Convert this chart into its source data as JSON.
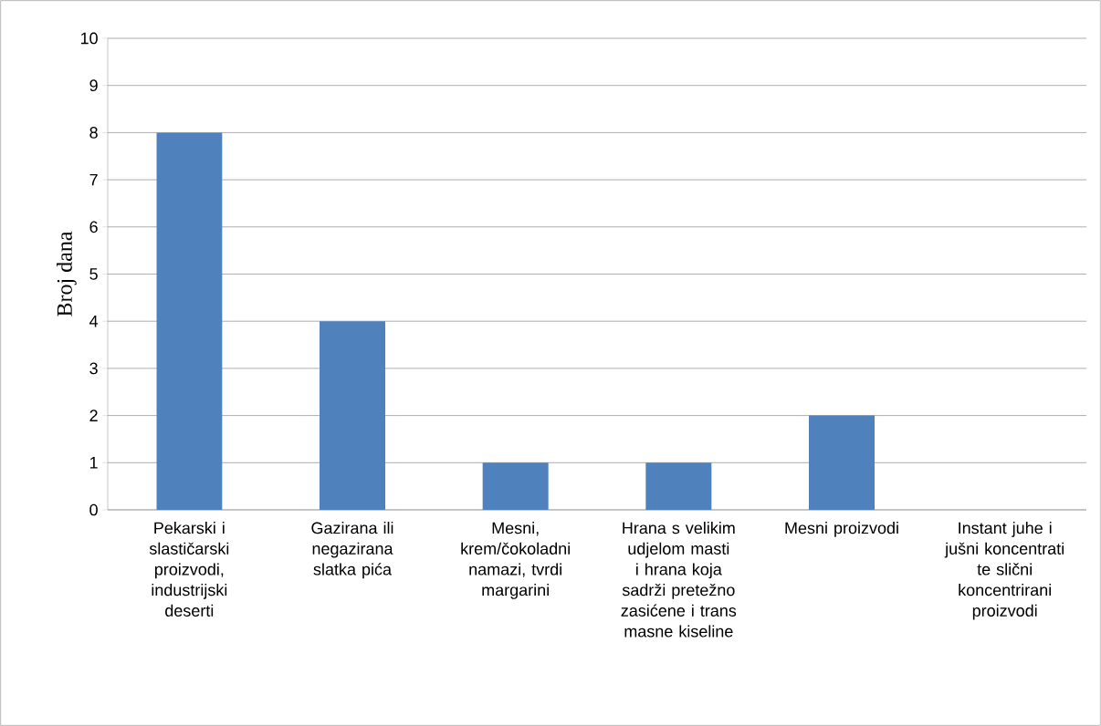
{
  "chart_data": {
    "type": "bar",
    "ylabel": "Broj dana",
    "categories": [
      "Pekarski i slastičarski proizvodi, industrijski deserti",
      "Gazirana ili negazirana slatka pića",
      "Mesni, krem/čokoladni namazi, tvrdi margarini",
      "Hrana s velikim udjelom masti i hrana koja sadrži pretežno zasićene i trans masne kiseline",
      "Mesni proizvodi",
      "Instant juhe i jušni koncentrati te slični koncentrirani proizvodi"
    ],
    "values": [
      8,
      4,
      1,
      1,
      2,
      0
    ],
    "color": "#4f81bd",
    "ylim": [
      0,
      10
    ],
    "yticks": [
      0,
      1,
      2,
      3,
      4,
      5,
      6,
      7,
      8,
      9,
      10
    ],
    "grid": "y"
  }
}
